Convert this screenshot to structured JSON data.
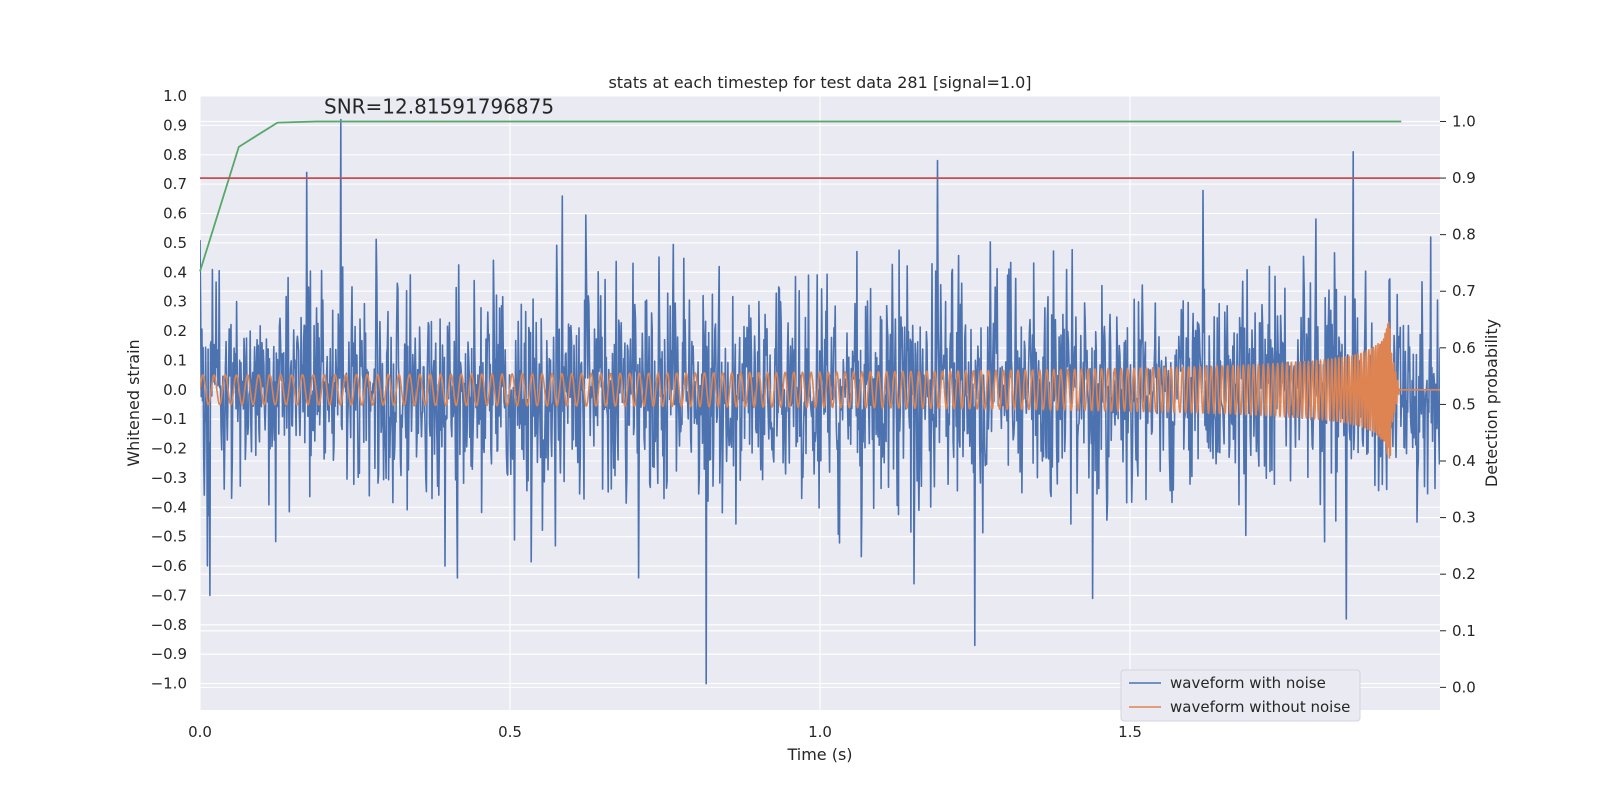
{
  "chart_data": {
    "type": "line",
    "title": "stats at each timestep for test data 281 [signal=1.0]",
    "xlabel": "Time (s)",
    "ylabel": "Whitened strain",
    "y2label": "Detection probability",
    "xlim": [
      0.0,
      2.0
    ],
    "ylim": [
      -1.09,
      1.0
    ],
    "y2lim": [
      -0.04,
      1.045
    ],
    "x_ticks": [
      0.0,
      0.5,
      1.0,
      1.5
    ],
    "x_tick_labels": [
      "0.0",
      "0.5",
      "1.0",
      "1.5"
    ],
    "y_ticks": [
      -1.0,
      -0.9,
      -0.8,
      -0.7,
      -0.6,
      -0.5,
      -0.4,
      -0.3,
      -0.2,
      -0.1,
      0.0,
      0.1,
      0.2,
      0.3,
      0.4,
      0.5,
      0.6,
      0.7,
      0.8,
      0.9,
      1.0
    ],
    "y_tick_labels": [
      "−1.0",
      "−0.9",
      "−0.8",
      "−0.7",
      "−0.6",
      "−0.5",
      "−0.4",
      "−0.3",
      "−0.2",
      "−0.1",
      "0.0",
      "0.1",
      "0.2",
      "0.3",
      "0.4",
      "0.5",
      "0.6",
      "0.7",
      "0.8",
      "0.9",
      "1.0"
    ],
    "y2_ticks": [
      0.0,
      0.1,
      0.2,
      0.3,
      0.4,
      0.5,
      0.6,
      0.7,
      0.8,
      0.9,
      1.0
    ],
    "y2_tick_labels": [
      "0.0",
      "0.1",
      "0.2",
      "0.3",
      "0.4",
      "0.5",
      "0.6",
      "0.7",
      "0.8",
      "0.9",
      "1.0"
    ],
    "grid": true,
    "legend_position": "lower-right",
    "annotation": {
      "text": "SNR=12.81591796875",
      "x": 0.2,
      "y": 0.94
    },
    "series": [
      {
        "name": "waveform with noise",
        "axis": "left",
        "color": "#4c72b0",
        "kind": "noisy-strain",
        "x_start": 0.0,
        "x_end": 2.0,
        "sample_count": 2000,
        "typical_range": [
          -0.45,
          0.5
        ],
        "notable_peaks": [
          {
            "x": 0.227,
            "y": 0.92
          },
          {
            "x": 1.86,
            "y": 0.81
          },
          {
            "x": 1.19,
            "y": 0.78
          },
          {
            "x": 0.172,
            "y": 0.74
          },
          {
            "x": 0.0,
            "y": 0.51
          },
          {
            "x": 1.985,
            "y": 0.52
          }
        ],
        "notable_troughs": [
          {
            "x": 0.816,
            "y": -1.0
          },
          {
            "x": 1.849,
            "y": -0.78
          },
          {
            "x": 1.25,
            "y": -0.87
          },
          {
            "x": 0.016,
            "y": -0.7
          },
          {
            "x": 1.44,
            "y": -0.71
          },
          {
            "x": 0.395,
            "y": -0.6
          }
        ]
      },
      {
        "name": "waveform without noise",
        "axis": "left",
        "color": "#dd8452",
        "kind": "chirp",
        "x_start": 0.0,
        "x_end": 2.0,
        "merger_time": 1.92,
        "amplitude_start": 0.05,
        "amplitude_peak": 0.37,
        "cycles_per_second_start": 55,
        "after_merger_value": 0.0
      },
      {
        "name": "",
        "axis": "right",
        "color": "#55a868",
        "kind": "detection-probability",
        "x": [
          0.0,
          0.0625,
          0.125,
          0.1875,
          0.25,
          0.5,
          1.0,
          1.5,
          1.9375
        ],
        "values": [
          0.735,
          0.955,
          0.998,
          1.0,
          1.0,
          1.0,
          1.0,
          1.0,
          1.0
        ]
      },
      {
        "name": "",
        "axis": "right",
        "color": "#c44e52",
        "kind": "threshold",
        "x": [
          0.0,
          2.0
        ],
        "values": [
          0.9,
          0.9
        ]
      }
    ]
  }
}
